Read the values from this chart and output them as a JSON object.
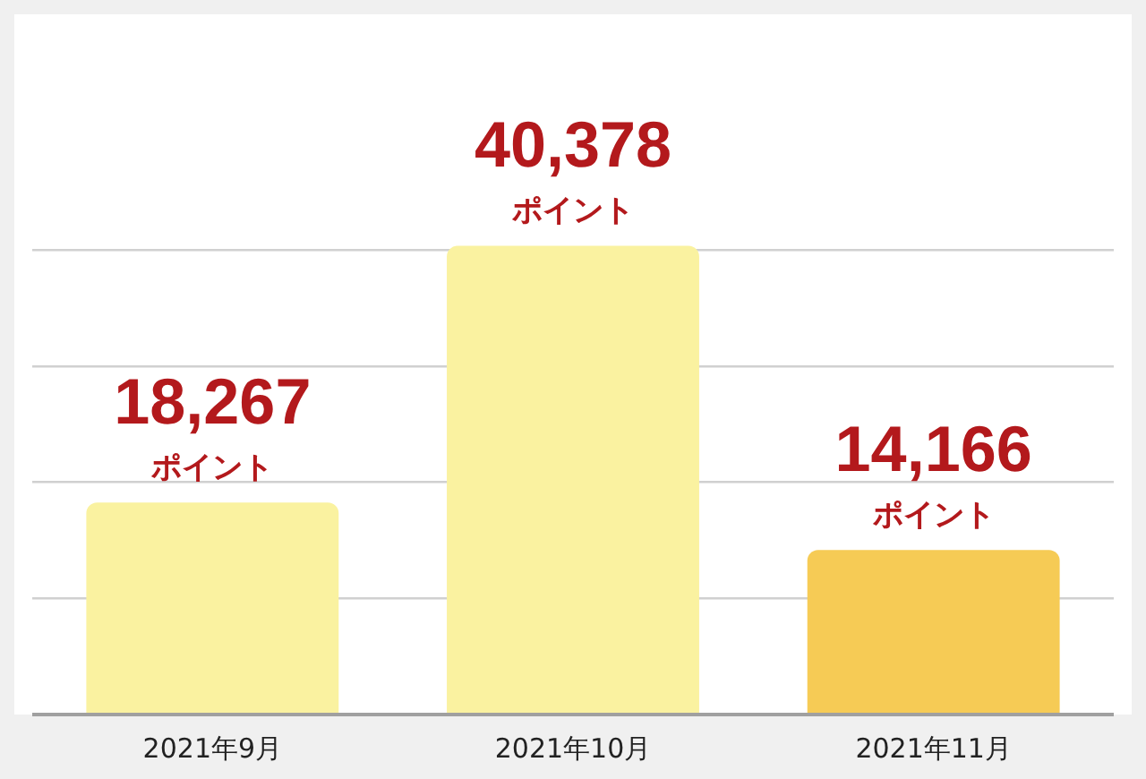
{
  "chart_data": {
    "type": "bar",
    "categories": [
      "2021年9月",
      "2021年10月",
      "2021年11月"
    ],
    "values": [
      18267,
      40378,
      14166
    ],
    "colors": [
      "#faf2a0",
      "#faf2a0",
      "#f6cb55"
    ],
    "value_labels": [
      "18,267",
      "40,378",
      "14,166"
    ],
    "annotations": [
      {
        "text": "ポイント",
        "x": "2021年9月",
        "y": 18267
      },
      {
        "text": "ポイント",
        "x": "2021年10月",
        "y": 40378
      },
      {
        "text": "ポイント",
        "x": "2021年11月",
        "y": 14166
      }
    ],
    "ylim": [
      0,
      60000
    ],
    "yticks": [
      {
        "value": 0,
        "label": null
      },
      {
        "value": 10000,
        "label": null
      },
      {
        "value": 20000,
        "label": null
      },
      {
        "value": 30000,
        "label": null
      },
      {
        "value": 40000,
        "label": null
      }
    ],
    "grid": "y",
    "tick_labels": "x",
    "legend": false
  }
}
